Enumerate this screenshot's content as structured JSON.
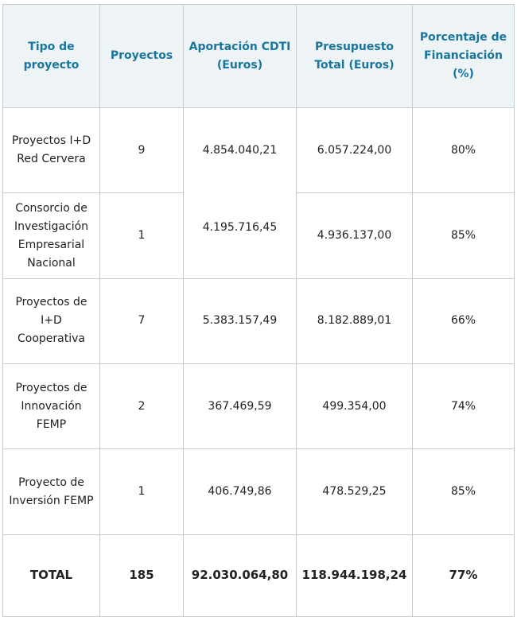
{
  "table": {
    "headers": {
      "tipo": "Tipo de proyecto",
      "proyectos": "Proyectos",
      "aportacion": "Aportación CDTI (Euros)",
      "presupuesto": "Presupuesto Total (Euros)",
      "porcentaje": "Porcentaje de Financiación (%)"
    },
    "rows": [
      {
        "tipo": "Proyectos I+D Red Cervera",
        "proyectos": "9",
        "aportacion": "4.854.040,21",
        "presupuesto": "6.057.224,00",
        "porcentaje": "80%"
      },
      {
        "tipo": "Consorcio de Investigación Empresarial Nacional",
        "proyectos": "1",
        "aportacion": "4.195.716,45",
        "presupuesto": "4.936.137,00",
        "porcentaje": "85%"
      },
      {
        "tipo": "Proyectos de I+D Cooperativa",
        "proyectos": "7",
        "aportacion": "5.383.157,49",
        "presupuesto": "8.182.889,01",
        "porcentaje": "66%"
      },
      {
        "tipo": "Proyectos de Innovación FEMP",
        "proyectos": "2",
        "aportacion": "367.469,59",
        "presupuesto": "499.354,00",
        "porcentaje": "74%"
      },
      {
        "tipo": "Proyecto de Inversión FEMP",
        "proyectos": "1",
        "aportacion": "406.749,86",
        "presupuesto": "478.529,25",
        "porcentaje": "85%"
      }
    ],
    "total": {
      "tipo": "TOTAL",
      "proyectos": "185",
      "aportacion": "92.030.064,80",
      "presupuesto": "118.944.198,24",
      "porcentaje": "77%"
    }
  }
}
